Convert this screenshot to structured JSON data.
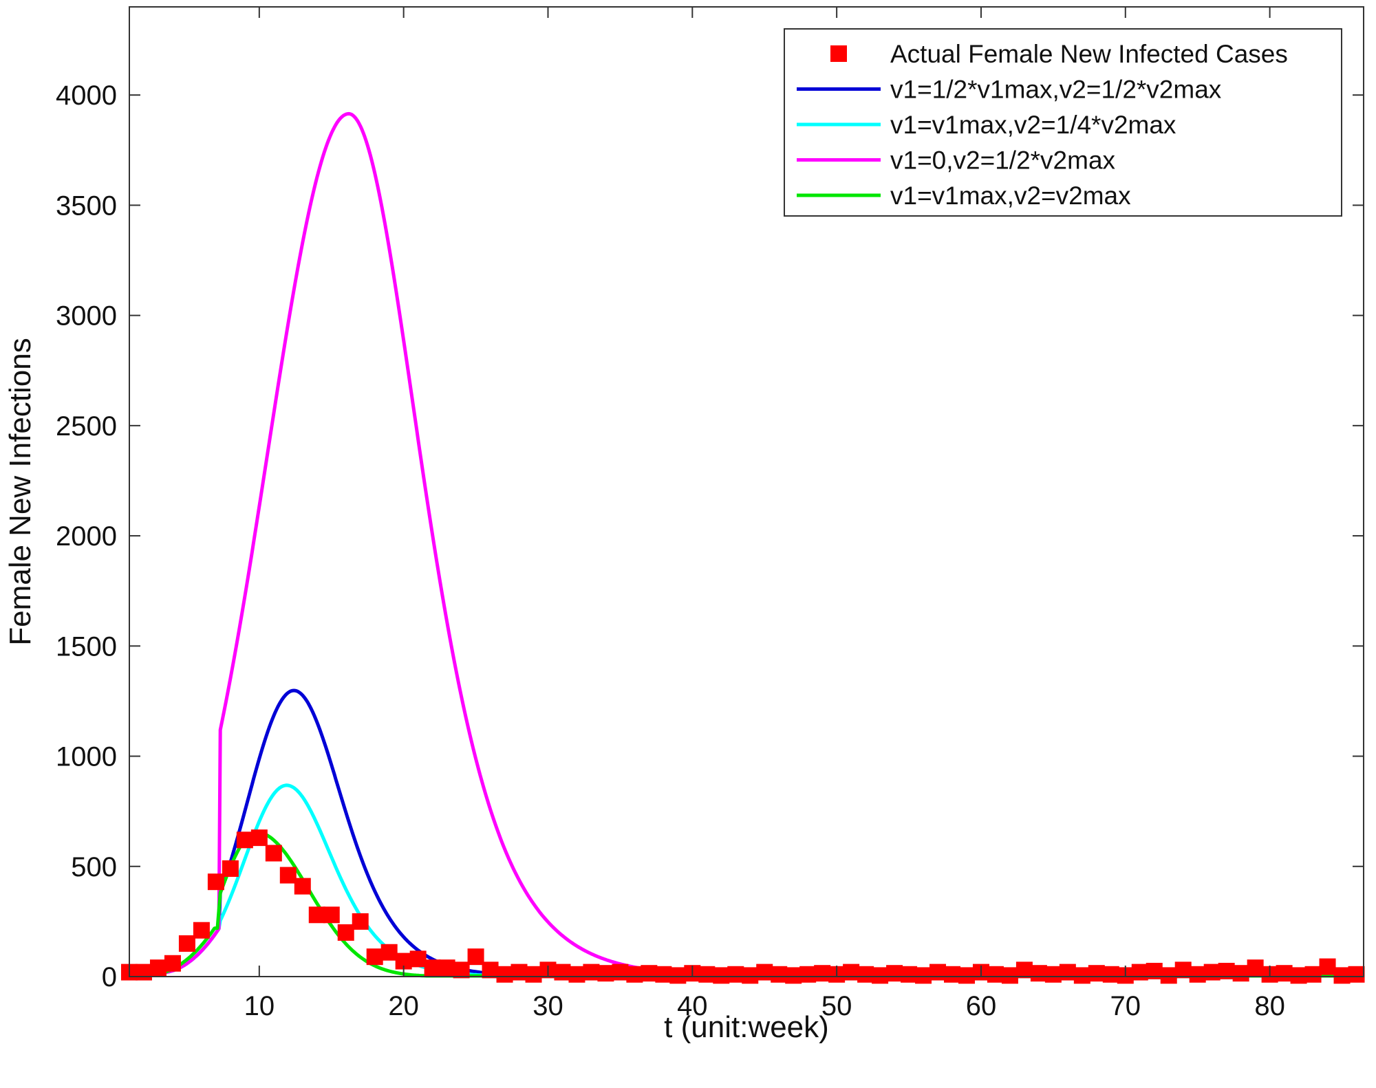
{
  "chart_data": {
    "type": "line",
    "title": "",
    "xlabel": "t (unit:week)",
    "ylabel": "Female New Infections",
    "xlim": [
      1,
      86.5
    ],
    "ylim": [
      0,
      4400
    ],
    "xticks": [
      10,
      20,
      30,
      40,
      50,
      60,
      70,
      80
    ],
    "yticks": [
      0,
      500,
      1000,
      1500,
      2000,
      2500,
      3000,
      3500,
      4000
    ],
    "grid": false,
    "legend_position": "top-right",
    "colors": {
      "actual": "#ff0000",
      "blue": "#0000d6",
      "cyan": "#00ffff",
      "magenta": "#ff00ff",
      "green": "#00e600",
      "axes": "#333333"
    },
    "legend": [
      "Actual Female New Infected Cases",
      "v1=1/2*v1max,v2=1/2*v2max",
      "v1=v1max,v2=1/4*v2max",
      "v1=0,v2=1/2*v2max",
      "v1=v1max,v2=v2max"
    ],
    "actual": {
      "name": "Actual Female New Infected Cases",
      "points": [
        [
          1,
          20
        ],
        [
          2,
          20
        ],
        [
          3,
          40
        ],
        [
          4,
          60
        ],
        [
          5,
          150
        ],
        [
          6,
          210
        ],
        [
          7,
          430
        ],
        [
          8,
          490
        ],
        [
          9,
          620
        ],
        [
          10,
          630
        ],
        [
          11,
          560
        ],
        [
          12,
          460
        ],
        [
          13,
          410
        ],
        [
          14,
          280
        ],
        [
          15,
          280
        ],
        [
          16,
          200
        ],
        [
          17,
          250
        ],
        [
          18,
          90
        ],
        [
          19,
          110
        ],
        [
          20,
          70
        ],
        [
          21,
          80
        ],
        [
          22,
          40
        ],
        [
          23,
          40
        ],
        [
          24,
          30
        ],
        [
          25,
          90
        ],
        [
          26,
          30
        ],
        [
          27,
          10
        ],
        [
          28,
          20
        ],
        [
          29,
          10
        ],
        [
          30,
          30
        ],
        [
          31,
          20
        ],
        [
          32,
          10
        ],
        [
          33,
          20
        ],
        [
          34,
          15
        ],
        [
          35,
          20
        ],
        [
          36,
          10
        ],
        [
          37,
          15
        ],
        [
          38,
          10
        ],
        [
          39,
          5
        ],
        [
          40,
          15
        ],
        [
          41,
          10
        ],
        [
          42,
          5
        ],
        [
          43,
          10
        ],
        [
          44,
          5
        ],
        [
          45,
          20
        ],
        [
          46,
          10
        ],
        [
          47,
          5
        ],
        [
          48,
          10
        ],
        [
          49,
          15
        ],
        [
          50,
          10
        ],
        [
          51,
          20
        ],
        [
          52,
          10
        ],
        [
          53,
          5
        ],
        [
          54,
          15
        ],
        [
          55,
          10
        ],
        [
          56,
          5
        ],
        [
          57,
          20
        ],
        [
          58,
          10
        ],
        [
          59,
          5
        ],
        [
          60,
          20
        ],
        [
          61,
          10
        ],
        [
          62,
          5
        ],
        [
          63,
          30
        ],
        [
          64,
          15
        ],
        [
          65,
          10
        ],
        [
          66,
          20
        ],
        [
          67,
          5
        ],
        [
          68,
          15
        ],
        [
          69,
          10
        ],
        [
          70,
          5
        ],
        [
          71,
          20
        ],
        [
          72,
          25
        ],
        [
          73,
          5
        ],
        [
          74,
          30
        ],
        [
          75,
          10
        ],
        [
          76,
          20
        ],
        [
          77,
          25
        ],
        [
          78,
          15
        ],
        [
          79,
          40
        ],
        [
          80,
          10
        ],
        [
          81,
          15
        ],
        [
          82,
          5
        ],
        [
          83,
          10
        ],
        [
          84,
          45
        ],
        [
          85,
          5
        ],
        [
          86,
          10
        ]
      ]
    },
    "series": [
      {
        "name": "v1=1/2*v1max,v2=1/2*v2max",
        "color": "#0000d6",
        "peak_t": 12.4,
        "peak": 1298,
        "start_t": 7.2
      },
      {
        "name": "v1=v1max,v2=1/4*v2max",
        "color": "#00ffff",
        "peak_t": 11.9,
        "peak": 868,
        "start_t": 7.2
      },
      {
        "name": "v1=0,v2=1/2*v2max",
        "color": "#ff00ff",
        "peak_t": 16.2,
        "peak": 3915,
        "start_t": 7.2
      },
      {
        "name": "v1=v1max,v2=v2max",
        "color": "#00e600",
        "peak_t": 9.8,
        "peak": 655,
        "start_t": 1.5
      }
    ]
  }
}
